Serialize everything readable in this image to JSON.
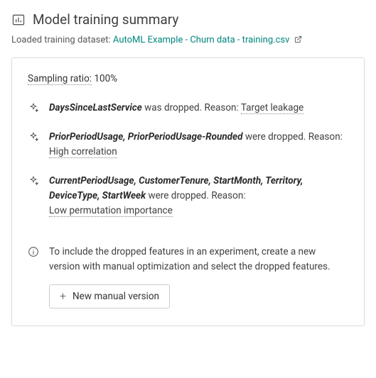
{
  "header": {
    "title": "Model training summary"
  },
  "dataset": {
    "label": "Loaded training dataset:",
    "link_text": "AutoML Example - Churn data - training.csv"
  },
  "sampling": {
    "label": "Sampling ratio:",
    "value": "100%"
  },
  "drops": [
    {
      "features": "DaysSinceLastService",
      "verb": "was dropped. Reason:",
      "reason": "Target leakage",
      "reason_inline": true
    },
    {
      "features": "PriorPeriodUsage, PriorPeriodUsage-Rounded",
      "verb": "were dropped. Reason:",
      "reason": "High correlation",
      "reason_inline": false
    },
    {
      "features": "CurrentPeriodUsage, CustomerTenure, StartMonth, Territory, DeviceType, StartWeek",
      "verb": "were dropped. Reason:",
      "reason": "Low permutation importance",
      "reason_inline": false
    }
  ],
  "info": {
    "text": "To include the dropped features in an experiment, create a new version with manual optimization and select the dropped features."
  },
  "button": {
    "label": "New manual version"
  }
}
